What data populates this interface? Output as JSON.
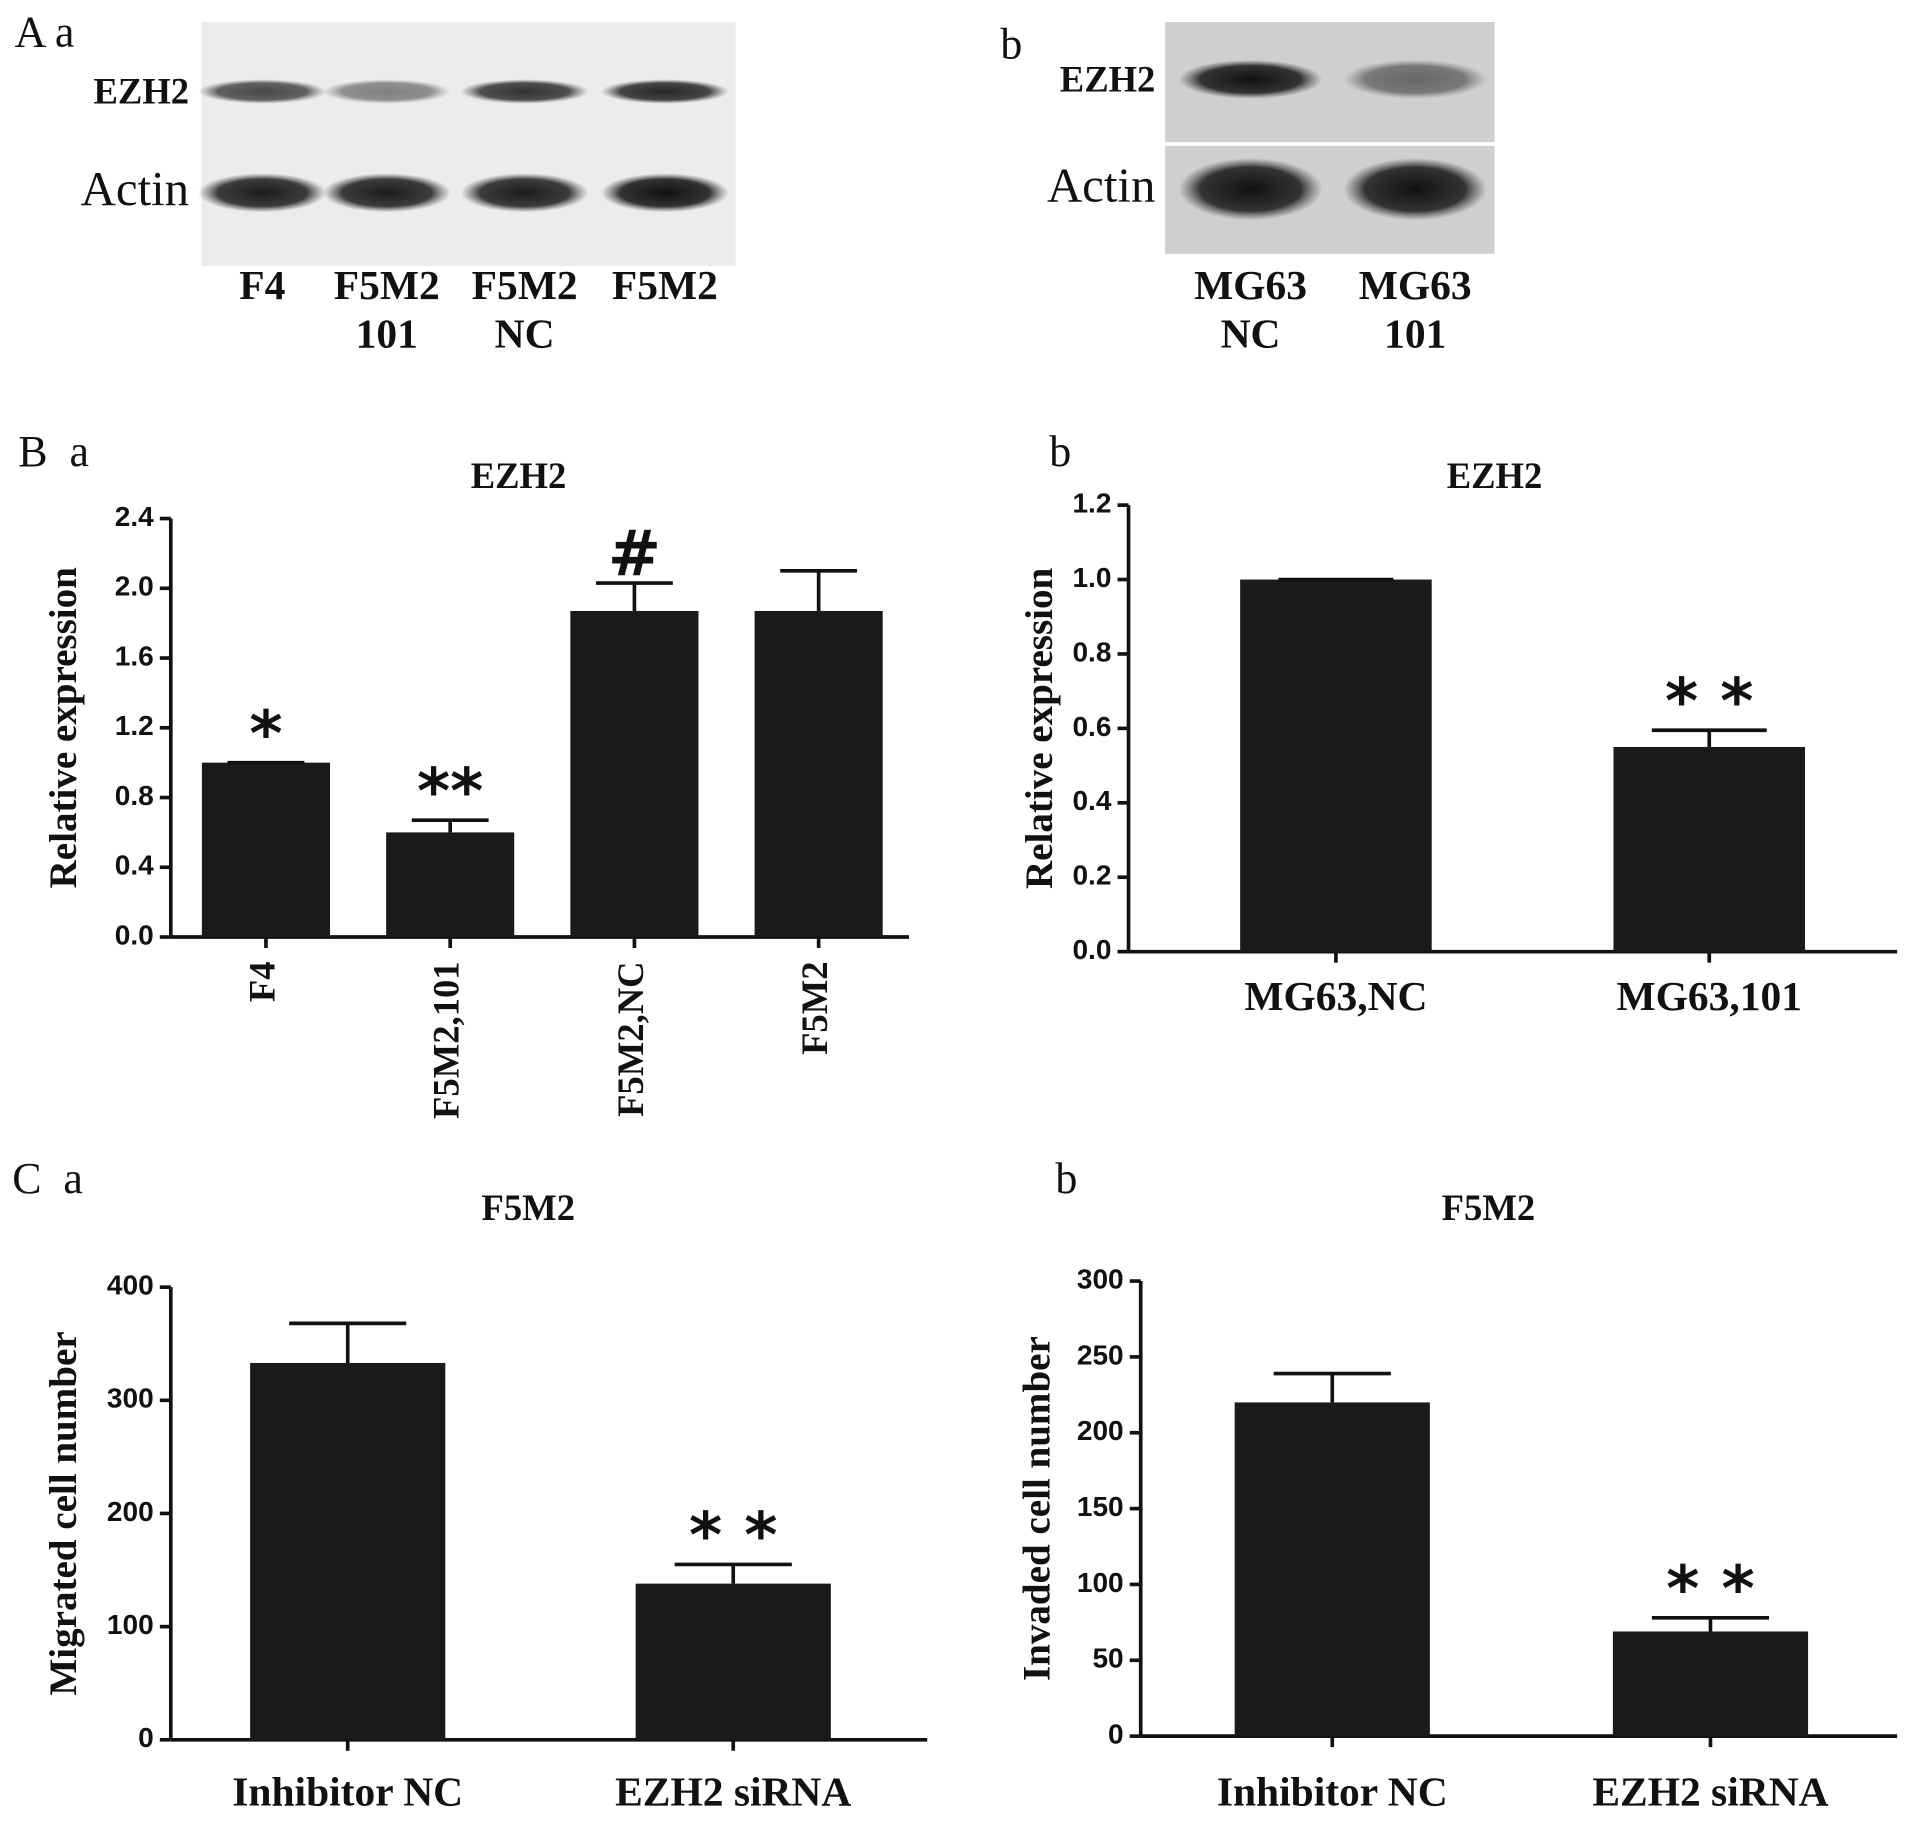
{
  "panel_labels": [
    "A a",
    "b",
    "B  a",
    "b",
    "C  a",
    "b"
  ],
  "blots": [
    {
      "rows": [
        "EZH2",
        "Actin"
      ],
      "lanes": [
        [
          "F4"
        ],
        [
          "F5M2",
          "101"
        ],
        [
          "F5M2",
          "NC"
        ],
        [
          "F5M2"
        ]
      ]
    },
    {
      "rows": [
        "EZH2",
        "Actin"
      ],
      "lanes": [
        [
          "MG63",
          "NC"
        ],
        [
          "MG63",
          "101"
        ]
      ]
    }
  ],
  "chart_data": [
    {
      "type": "bar",
      "title": "EZH2",
      "ylabel": "Relative expression",
      "categories": [
        "F4",
        "F5M2,101",
        "F5M2,NC",
        "F5M2"
      ],
      "values": [
        1.0,
        0.6,
        1.87,
        1.87
      ],
      "errors": [
        0,
        0.07,
        0.16,
        0.23
      ],
      "annotations": [
        "*",
        "**",
        "#",
        null
      ],
      "color": "#1a1a1a",
      "xtick_rotation": -90,
      "ylim": [
        0,
        2.4
      ],
      "yticks": [
        {
          "value": 0,
          "label": "0.0"
        },
        0.4,
        0.8,
        1.2,
        1.6,
        {
          "value": 2,
          "label": "2.0"
        },
        2.4
      ]
    },
    {
      "type": "bar",
      "title": "EZH2",
      "ylabel": "Relative expression",
      "categories": [
        "MG63,NC",
        "MG63,101"
      ],
      "values": [
        1.0,
        0.55
      ],
      "errors": [
        0,
        0.045
      ],
      "annotations": [
        null,
        "* *"
      ],
      "color": "#1a1a1a",
      "xtick_rotation": 0,
      "ylim": [
        0,
        1.2
      ],
      "yticks": [
        {
          "value": 0,
          "label": "0.0"
        },
        0.2,
        0.4,
        0.6,
        0.8,
        {
          "value": 1,
          "label": "1.0"
        },
        1.2
      ]
    },
    {
      "type": "bar",
      "title": "F5M2",
      "ylabel": "Migrated cell number",
      "categories": [
        "Inhibitor NC",
        "EZH2 siRNA"
      ],
      "values": [
        333,
        138
      ],
      "errors": [
        35,
        17
      ],
      "annotations": [
        null,
        "* *"
      ],
      "color": "#1a1a1a",
      "xtick_rotation": 0,
      "ylim": [
        0,
        400
      ],
      "yticks": [
        0,
        100,
        200,
        300,
        400
      ]
    },
    {
      "type": "bar",
      "title": "F5M2",
      "ylabel": "Invaded cell number",
      "categories": [
        "Inhibitor NC",
        "EZH2 siRNA"
      ],
      "values": [
        220,
        69
      ],
      "errors": [
        19,
        9
      ],
      "annotations": [
        null,
        "* *"
      ],
      "color": "#1a1a1a",
      "xtick_rotation": 0,
      "ylim": [
        0,
        300
      ],
      "yticks": [
        0,
        50,
        100,
        150,
        200,
        250,
        300
      ]
    }
  ]
}
